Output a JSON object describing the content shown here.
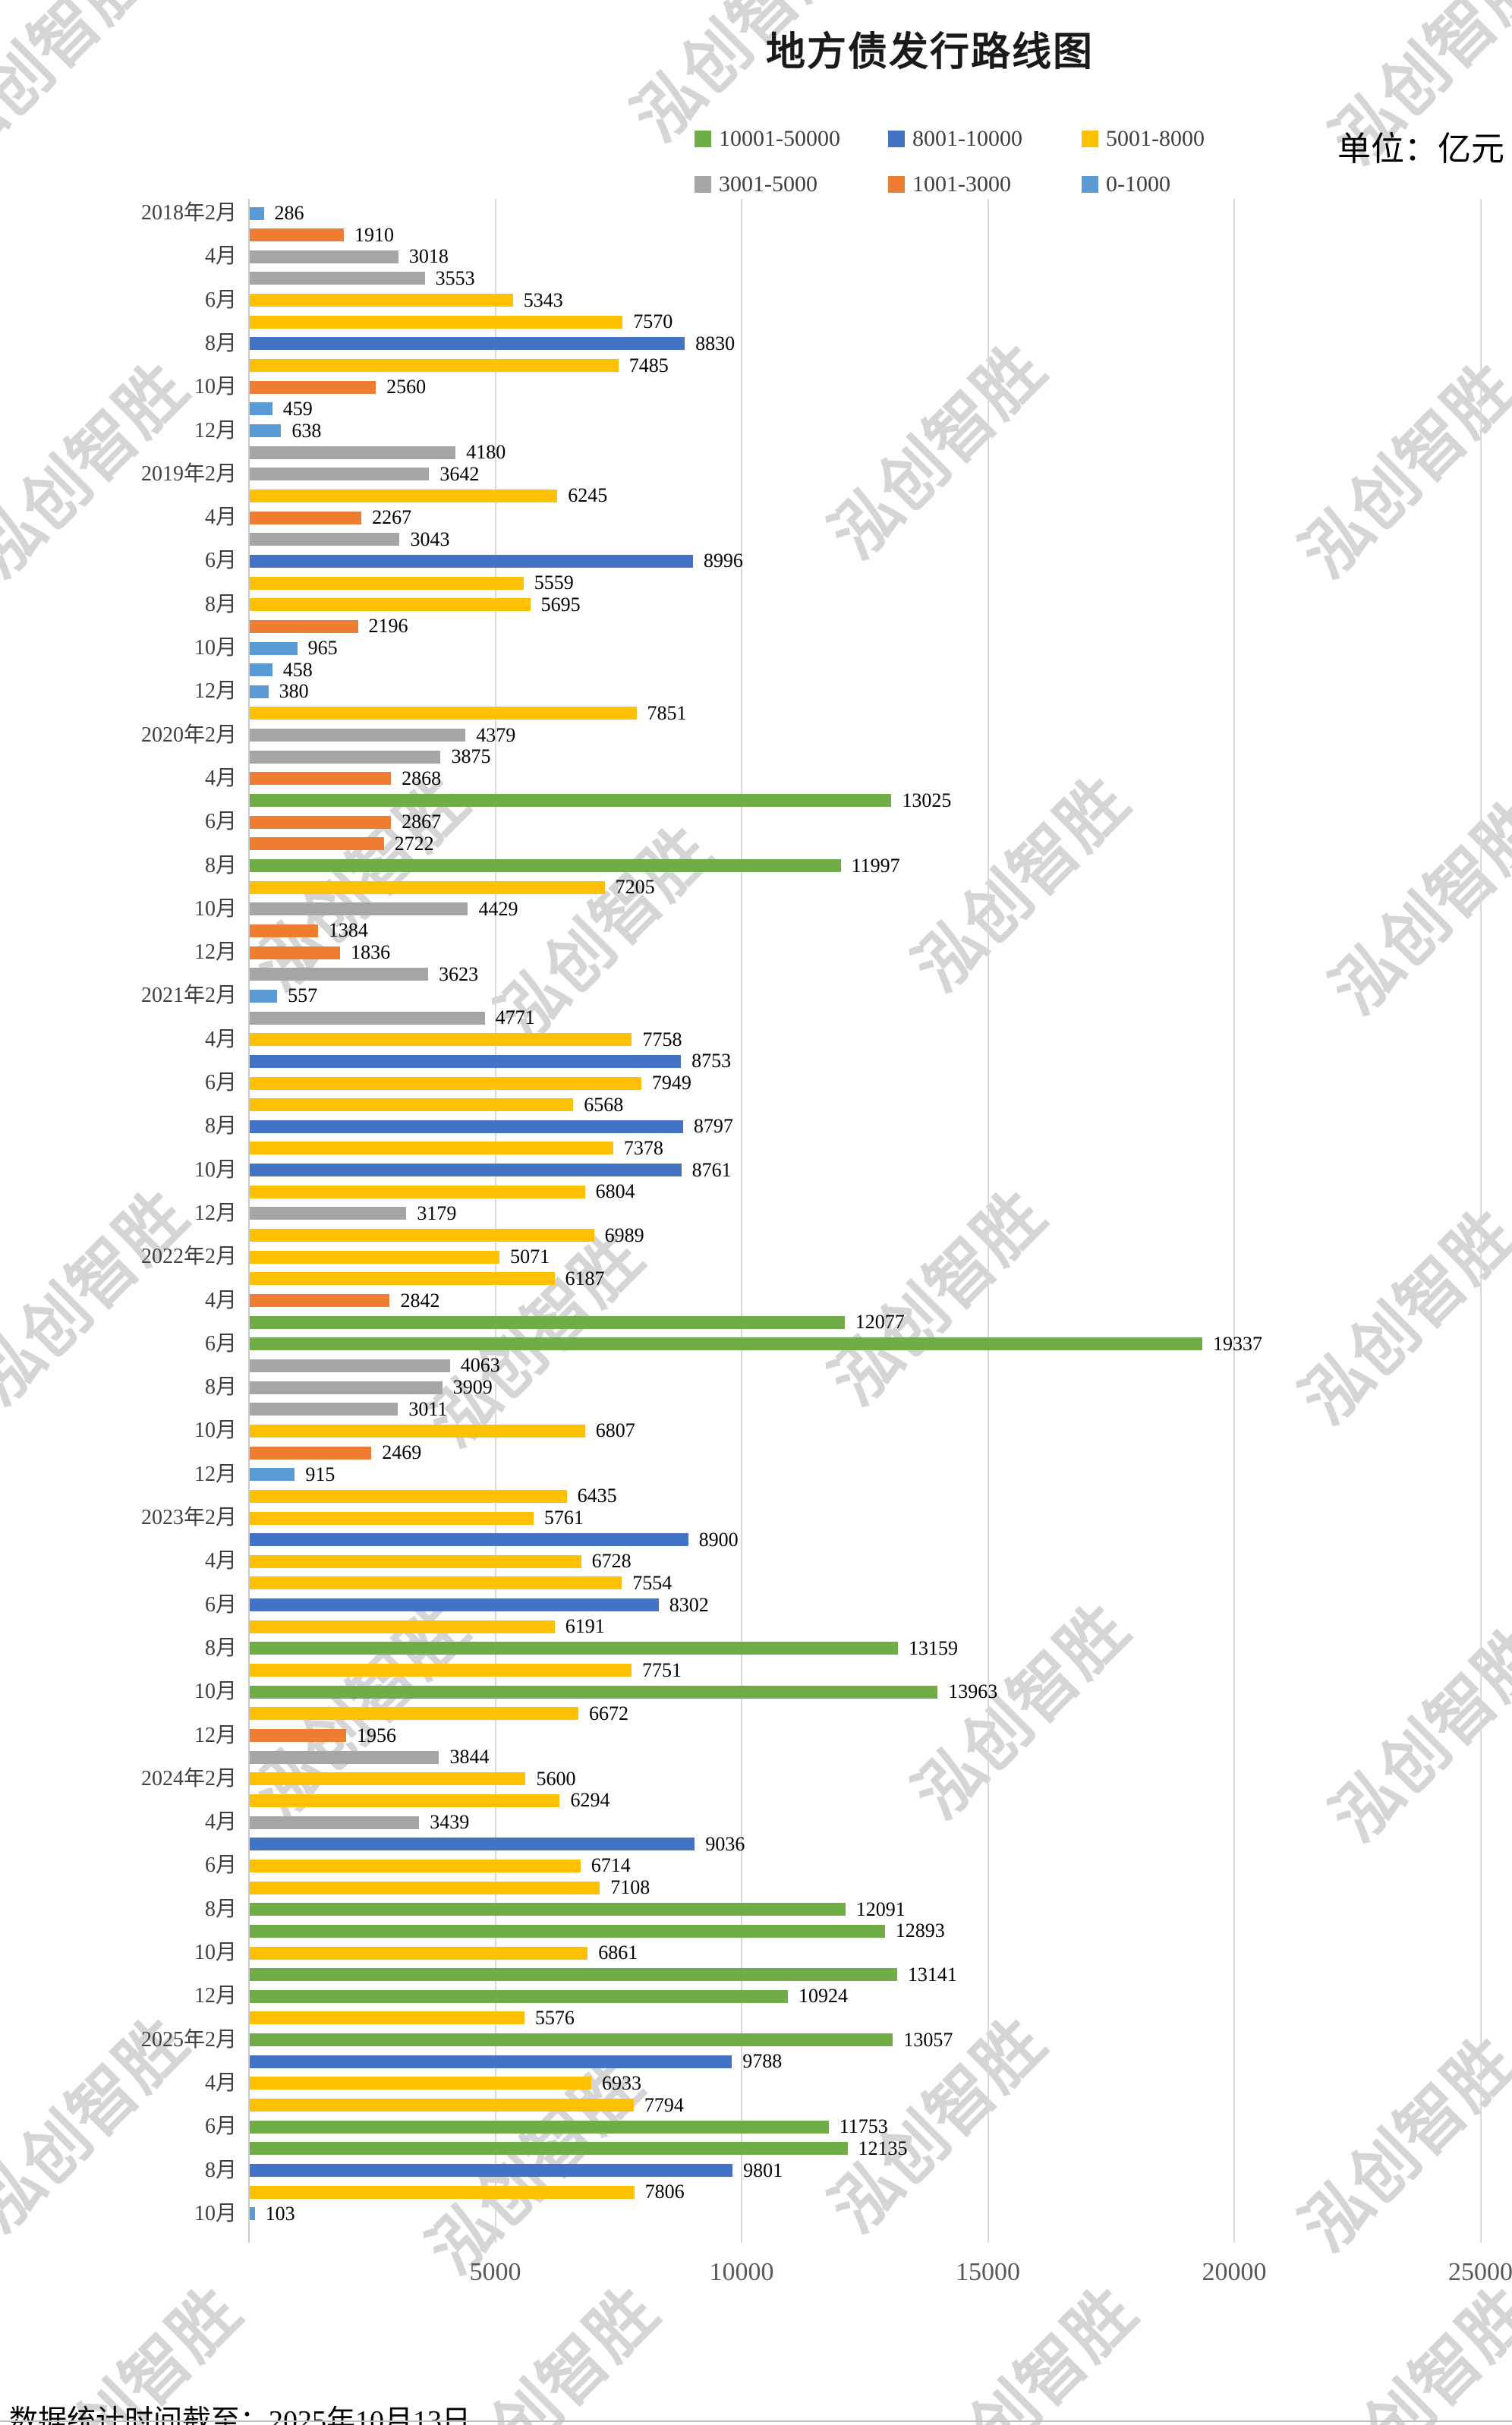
{
  "title": "地方债发行路线图",
  "unit_label": "单位：亿元",
  "watermark_text": "泓创智胜",
  "footer": "数据统计时间截至：2025年10月13日",
  "legend": {
    "rows": [
      [
        {
          "label": "10001-50000",
          "color": "#70AD47"
        },
        {
          "label": "8001-10000",
          "color": "#4472C4"
        },
        {
          "label": "5001-8000",
          "color": "#FFC000"
        }
      ],
      [
        {
          "label": "3001-5000",
          "color": "#A5A5A5"
        },
        {
          "label": "1001-3000",
          "color": "#ED7D31"
        },
        {
          "label": "0-1000",
          "color": "#5B9BD5"
        }
      ]
    ]
  },
  "chart_data": {
    "type": "bar",
    "orientation": "horizontal",
    "title": "地方债发行路线图",
    "unit": "亿元",
    "xlim": [
      0,
      25000
    ],
    "x_ticks": [
      0,
      5000,
      10000,
      15000,
      20000,
      25000
    ],
    "x_tick_labels": [
      "5000",
      "10000",
      "15000",
      "20000",
      "25000"
    ],
    "grid": "vertical",
    "category_label_rule": "even months only; February carries the year (e.g. 2018年2月)",
    "color_rules": [
      {
        "min": 0,
        "max": 1000,
        "color": "#5B9BD5",
        "legend": "0-1000"
      },
      {
        "min": 1001,
        "max": 3000,
        "color": "#ED7D31",
        "legend": "1001-3000"
      },
      {
        "min": 3001,
        "max": 5000,
        "color": "#A5A5A5",
        "legend": "3001-5000"
      },
      {
        "min": 5001,
        "max": 8000,
        "color": "#FFC000",
        "legend": "5001-8000"
      },
      {
        "min": 8001,
        "max": 10000,
        "color": "#4472C4",
        "legend": "8001-10000"
      },
      {
        "min": 10001,
        "max": 50000,
        "color": "#70AD47",
        "legend": "10001-50000"
      }
    ],
    "series": [
      {
        "year": 2018,
        "start_month": 2,
        "values": [
          286,
          1910,
          3018,
          3553,
          5343,
          7570,
          8830,
          7485,
          2560,
          459,
          638
        ]
      },
      {
        "year": 2019,
        "start_month": 1,
        "values": [
          4180,
          3642,
          6245,
          2267,
          3043,
          8996,
          5559,
          5695,
          2196,
          965,
          458,
          380
        ]
      },
      {
        "year": 2020,
        "start_month": 1,
        "values": [
          7851,
          4379,
          3875,
          2868,
          13025,
          2867,
          2722,
          11997,
          7205,
          4429,
          1384,
          1836
        ]
      },
      {
        "year": 2021,
        "start_month": 1,
        "values": [
          3623,
          557,
          4771,
          7758,
          8753,
          7949,
          6568,
          8797,
          7378,
          8761,
          6804,
          3179
        ]
      },
      {
        "year": 2022,
        "start_month": 1,
        "values": [
          6989,
          5071,
          6187,
          2842,
          12077,
          19337,
          4063,
          3909,
          3011,
          6807,
          2469,
          915
        ]
      },
      {
        "year": 2023,
        "start_month": 1,
        "values": [
          6435,
          5761,
          8900,
          6728,
          7554,
          8302,
          6191,
          13159,
          7751,
          13963,
          6672,
          1956
        ]
      },
      {
        "year": 2024,
        "start_month": 1,
        "values": [
          3844,
          5600,
          6294,
          3439,
          9036,
          6714,
          7108,
          12091,
          12893,
          6861,
          13141,
          10924
        ]
      },
      {
        "year": 2025,
        "start_month": 1,
        "values": [
          5576,
          13057,
          9788,
          6933,
          7794,
          11753,
          12135,
          9801,
          7806,
          103
        ]
      }
    ]
  }
}
